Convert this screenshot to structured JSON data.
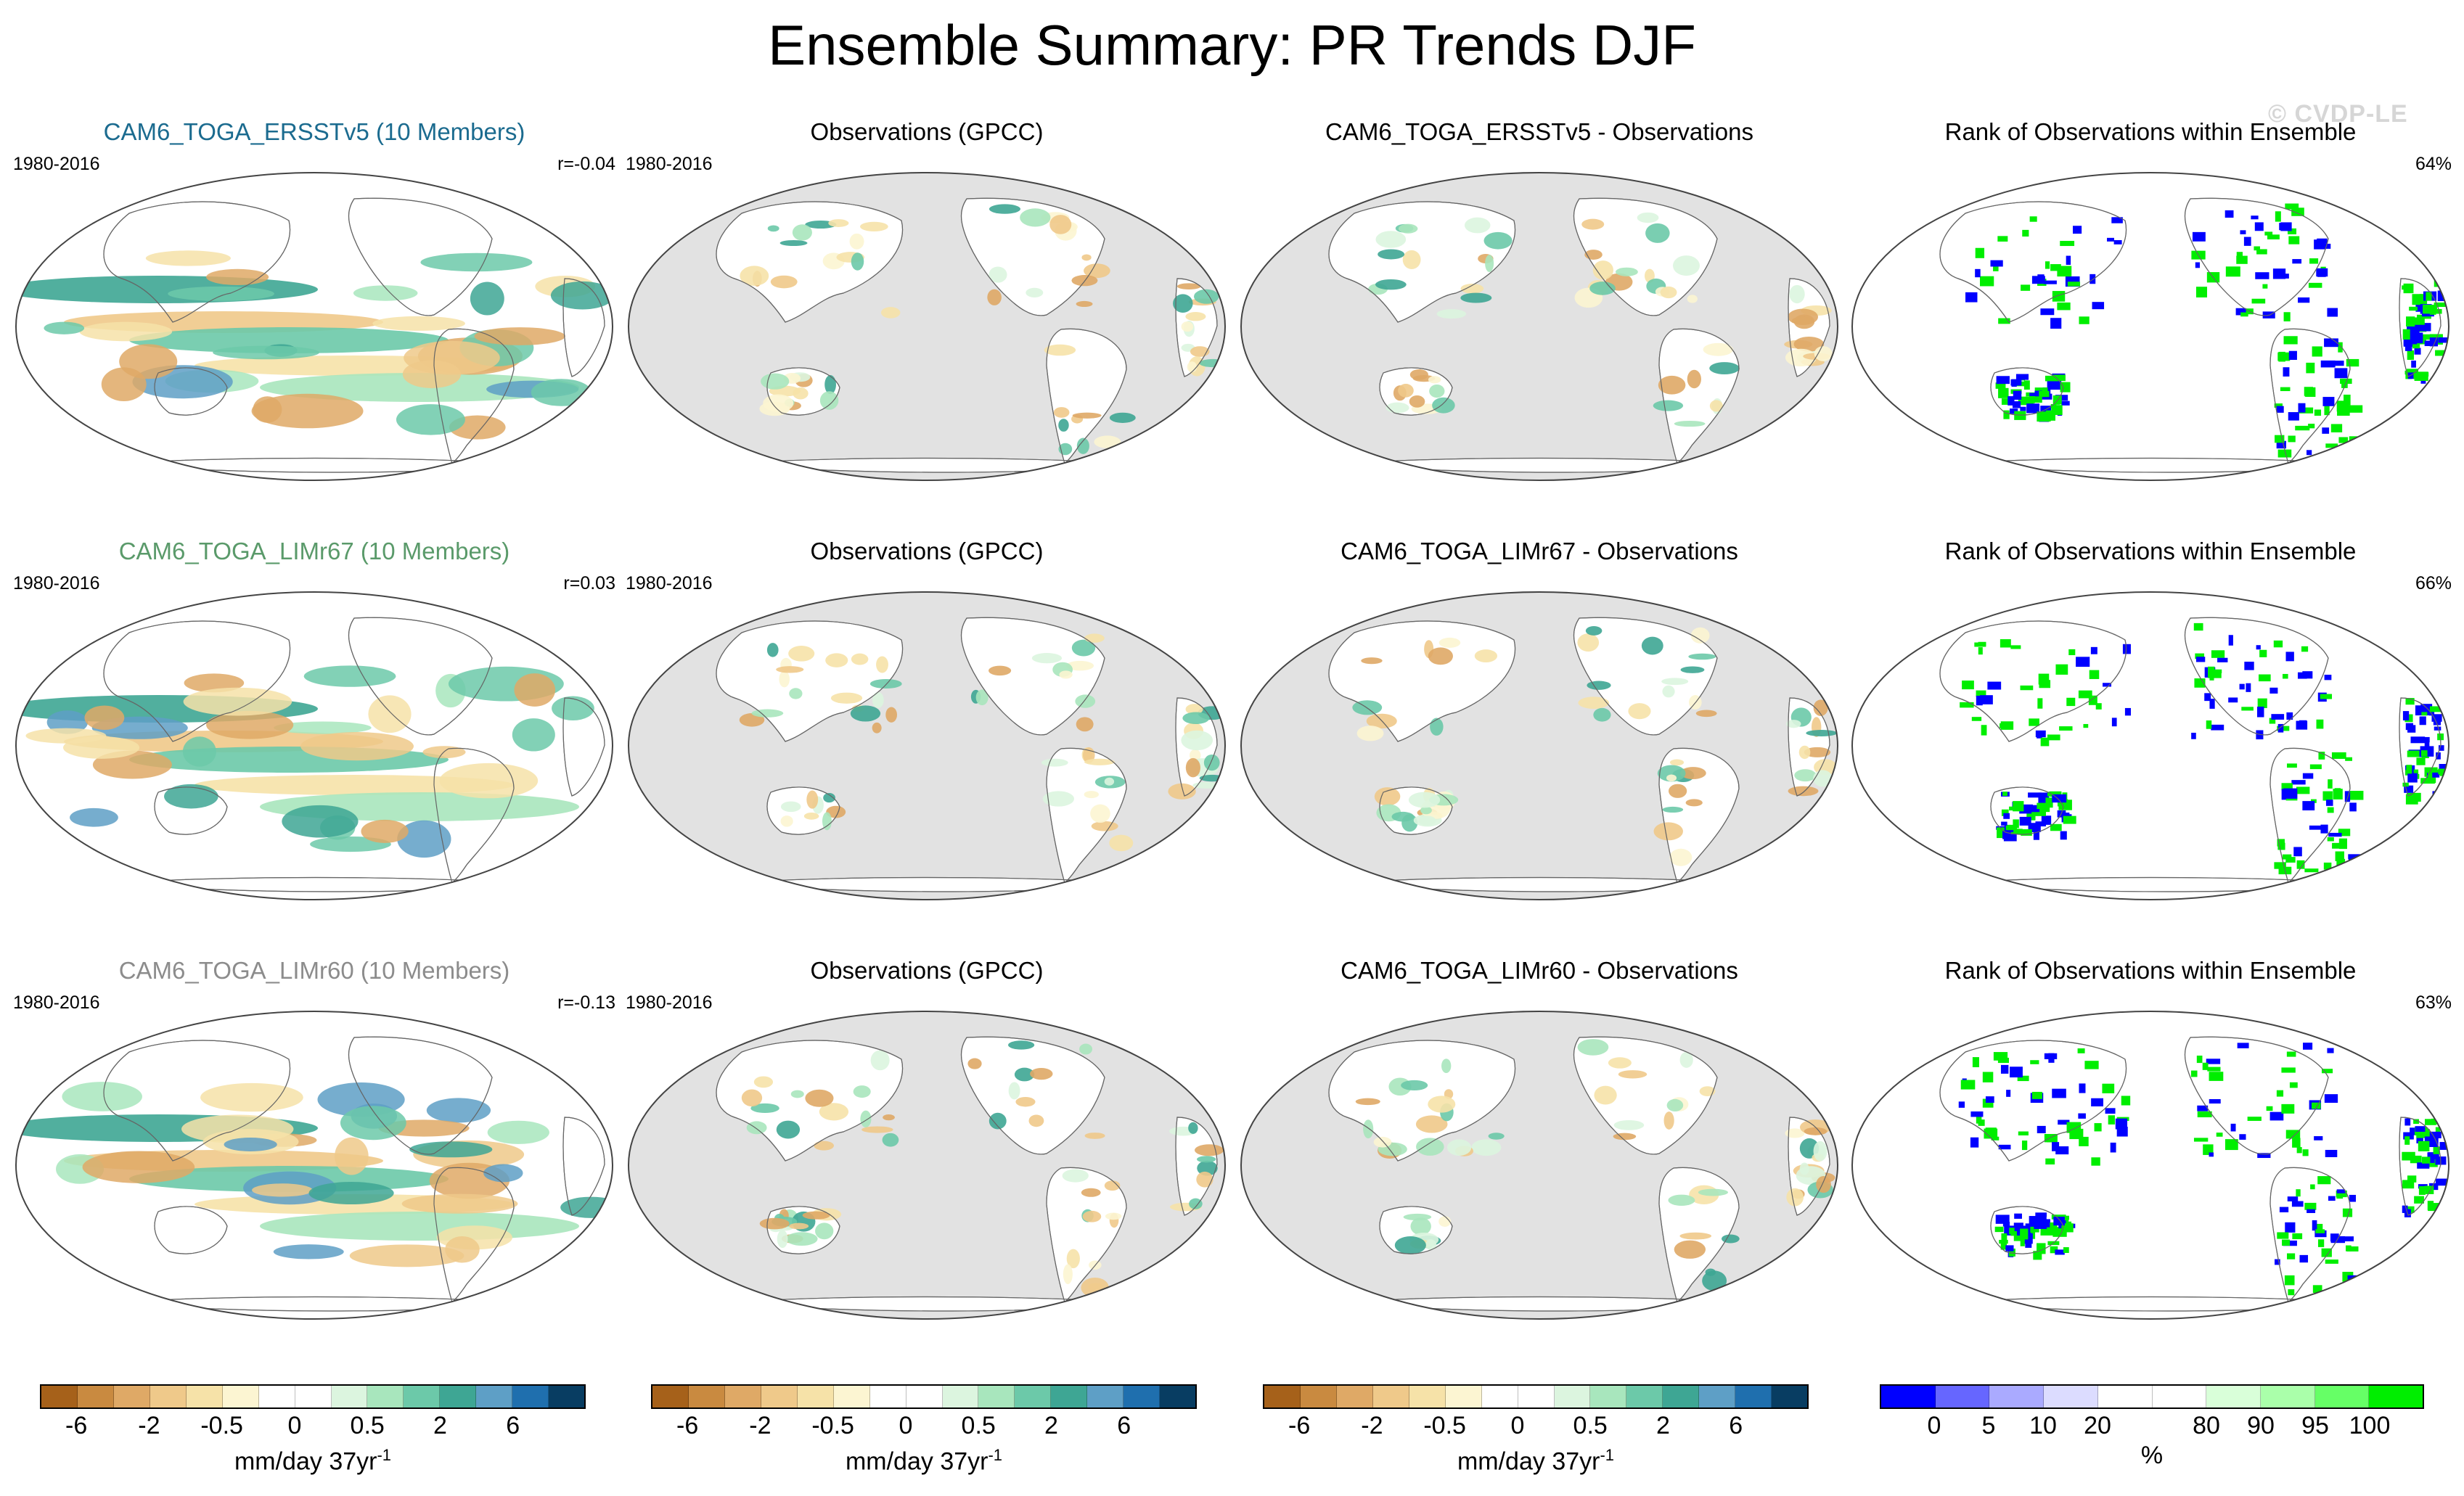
{
  "title": "Ensemble Summary: PR Trends DJF",
  "watermark": "© CVDP-LE",
  "rows": [
    {
      "model": {
        "title": "CAM6_TOGA_ERSSTv5 (10 Members)",
        "title_color": "#1b6b8f",
        "period": "1980-2016",
        "corr": "r=-0.04"
      },
      "obs": {
        "title": "Observations (GPCC)",
        "period": "1980-2016"
      },
      "diff": {
        "title": "CAM6_TOGA_ERSSTv5 - Observations"
      },
      "rank": {
        "title": "Rank of Observations within Ensemble",
        "pct": "64%"
      }
    },
    {
      "model": {
        "title": "CAM6_TOGA_LIMr67 (10 Members)",
        "title_color": "#5a9a6a",
        "period": "1980-2016",
        "corr": "r=0.03"
      },
      "obs": {
        "title": "Observations (GPCC)",
        "period": "1980-2016"
      },
      "diff": {
        "title": "CAM6_TOGA_LIMr67 - Observations"
      },
      "rank": {
        "title": "Rank of Observations within Ensemble",
        "pct": "66%"
      }
    },
    {
      "model": {
        "title": "CAM6_TOGA_LIMr60 (10 Members)",
        "title_color": "#8c8c8c",
        "period": "1980-2016",
        "corr": "r=-0.13"
      },
      "obs": {
        "title": "Observations (GPCC)",
        "period": "1980-2016"
      },
      "diff": {
        "title": "CAM6_TOGA_LIMr60 - Observations"
      },
      "rank": {
        "title": "Rank of Observations within Ensemble",
        "pct": "63%"
      }
    }
  ],
  "colorbars": {
    "precip": {
      "colors": [
        "#a6611a",
        "#c98a40",
        "#dfa966",
        "#efc98a",
        "#f6e2a8",
        "#fcf5d2",
        "#ffffff",
        "#ffffff",
        "#dcf5df",
        "#a8e6bd",
        "#6cc9a9",
        "#3ea694",
        "#5e9fc6",
        "#1f6fae",
        "#083d62"
      ],
      "tick_labels": [
        "-6",
        "-2",
        "-0.5",
        "0",
        "0.5",
        "2",
        "6"
      ],
      "tick_boundaries": [
        1,
        3,
        5,
        7,
        9,
        11,
        13
      ],
      "unit": "mm/day 37yr",
      "unit_exp": "-1"
    },
    "rank": {
      "colors": [
        "#0000ff",
        "#6666ff",
        "#aaaaff",
        "#dcdcff",
        "#ffffff",
        "#ffffff",
        "#d9ffd9",
        "#aaffaa",
        "#66ff66",
        "#00ee00"
      ],
      "tick_labels": [
        "0",
        "5",
        "10",
        "20",
        "80",
        "90",
        "95",
        "100"
      ],
      "tick_boundaries": [
        1,
        2,
        3,
        4,
        6,
        7,
        8,
        9
      ],
      "unit": "%"
    }
  },
  "chart_data": [
    {
      "type": "map",
      "title": "Ensemble Summary: PR Trends DJF",
      "panels": [
        [
          "CAM6_TOGA_ERSSTv5 (10 Members)",
          "Observations (GPCC)",
          "CAM6_TOGA_ERSSTv5 - Observations",
          "Rank of Observations within Ensemble"
        ],
        [
          "CAM6_TOGA_LIMr67 (10 Members)",
          "Observations (GPCC)",
          "CAM6_TOGA_LIMr67 - Observations",
          "Rank of Observations within Ensemble"
        ],
        [
          "CAM6_TOGA_LIMr60 (10 Members)",
          "Observations (GPCC)",
          "CAM6_TOGA_LIMr60 - Observations",
          "Rank of Observations within Ensemble"
        ]
      ],
      "pattern_correlations": [
        -0.04,
        0.03,
        -0.13
      ],
      "rank_percentages": [
        64,
        66,
        63
      ],
      "period": "1980-2016",
      "units": "mm/day 37yr-1"
    }
  ]
}
